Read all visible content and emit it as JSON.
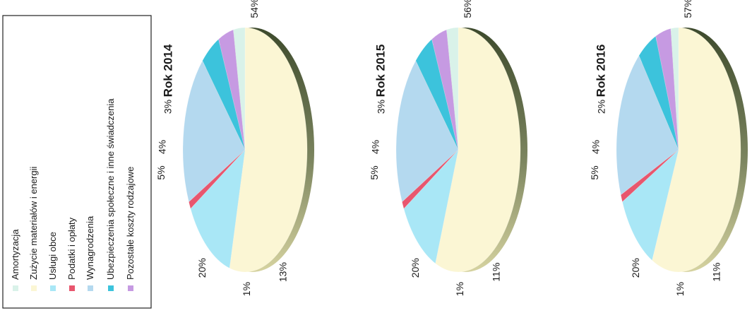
{
  "legend": {
    "items": [
      {
        "label": "Amortyzacja",
        "color": "#d9f2e9"
      },
      {
        "label": "Zużycie materiałów i energii",
        "color": "#fbf6d4"
      },
      {
        "label": "Usługi obce",
        "color": "#a9e7f6"
      },
      {
        "label": "Podatki i opłaty",
        "color": "#e8566e"
      },
      {
        "label": "Wynagrodzenia",
        "color": "#b4d9ef"
      },
      {
        "label": "Ubezpieczenia społeczne i inne świadczenia",
        "color": "#3cc3dc"
      },
      {
        "label": "Pozostałe koszty rodzajowe",
        "color": "#c69ae2"
      }
    ]
  },
  "chart_data": [
    {
      "type": "pie",
      "title": "Rok 2014",
      "categories": [
        "Amortyzacja",
        "Zużycie materiałów i energii",
        "Usługi obce",
        "Podatki i opłaty",
        "Wynagrodzenia",
        "Ubezpieczenia społeczne i inne świadczenia",
        "Pozostałe koszty rodzajowe"
      ],
      "values": [
        3,
        54,
        13,
        1,
        20,
        5,
        4
      ],
      "labels": [
        "3%",
        "54%",
        "13%",
        "1%",
        "20%",
        "5%",
        "4%"
      ]
    },
    {
      "type": "pie",
      "title": "Rok 2015",
      "categories": [
        "Amortyzacja",
        "Zużycie materiałów i energii",
        "Usługi obce",
        "Podatki i opłaty",
        "Wynagrodzenia",
        "Ubezpieczenia społeczne i inne świadczenia",
        "Pozostałe koszty rodzajowe"
      ],
      "values": [
        3,
        56,
        11,
        1,
        20,
        5,
        4
      ],
      "labels": [
        "3%",
        "56%",
        "11%",
        "1%",
        "20%",
        "5%",
        "4%"
      ]
    },
    {
      "type": "pie",
      "title": "Rok 2016",
      "categories": [
        "Amortyzacja",
        "Zużycie materiałów i energii",
        "Usługi obce",
        "Podatki i opłaty",
        "Wynagrodzenia",
        "Ubezpieczenia społeczne i inne świadczenia",
        "Pozostałe koszty rodzajowe"
      ],
      "values": [
        2,
        57,
        11,
        1,
        20,
        5,
        4
      ],
      "labels": [
        "2%",
        "57%",
        "11%",
        "1%",
        "20%",
        "5%",
        "4%"
      ]
    }
  ]
}
